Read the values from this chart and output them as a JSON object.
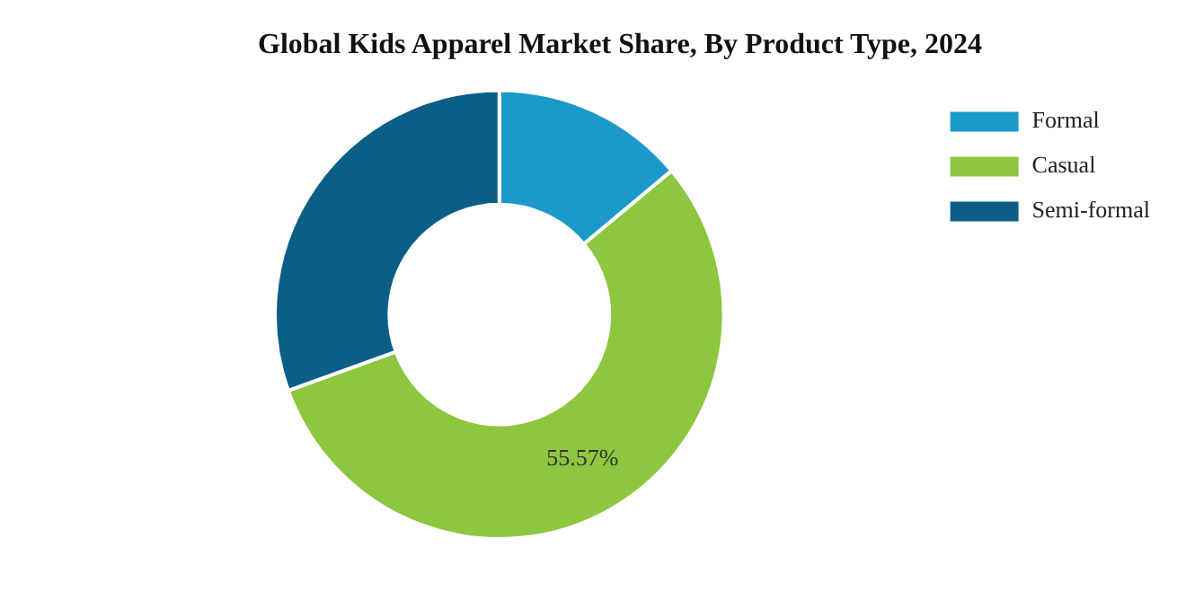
{
  "chart_data": {
    "type": "donut",
    "title": "Global Kids Apparel Market Share, By Product Type, 2024",
    "categories": [
      "Formal",
      "Casual",
      "Semi-formal"
    ],
    "values": [
      13.93,
      55.57,
      30.5
    ],
    "colors": [
      "#1b9ac9",
      "#8dc63f",
      "#0b5f87"
    ],
    "value_labels": [
      null,
      "55.57%",
      null
    ],
    "legend": "top right"
  }
}
